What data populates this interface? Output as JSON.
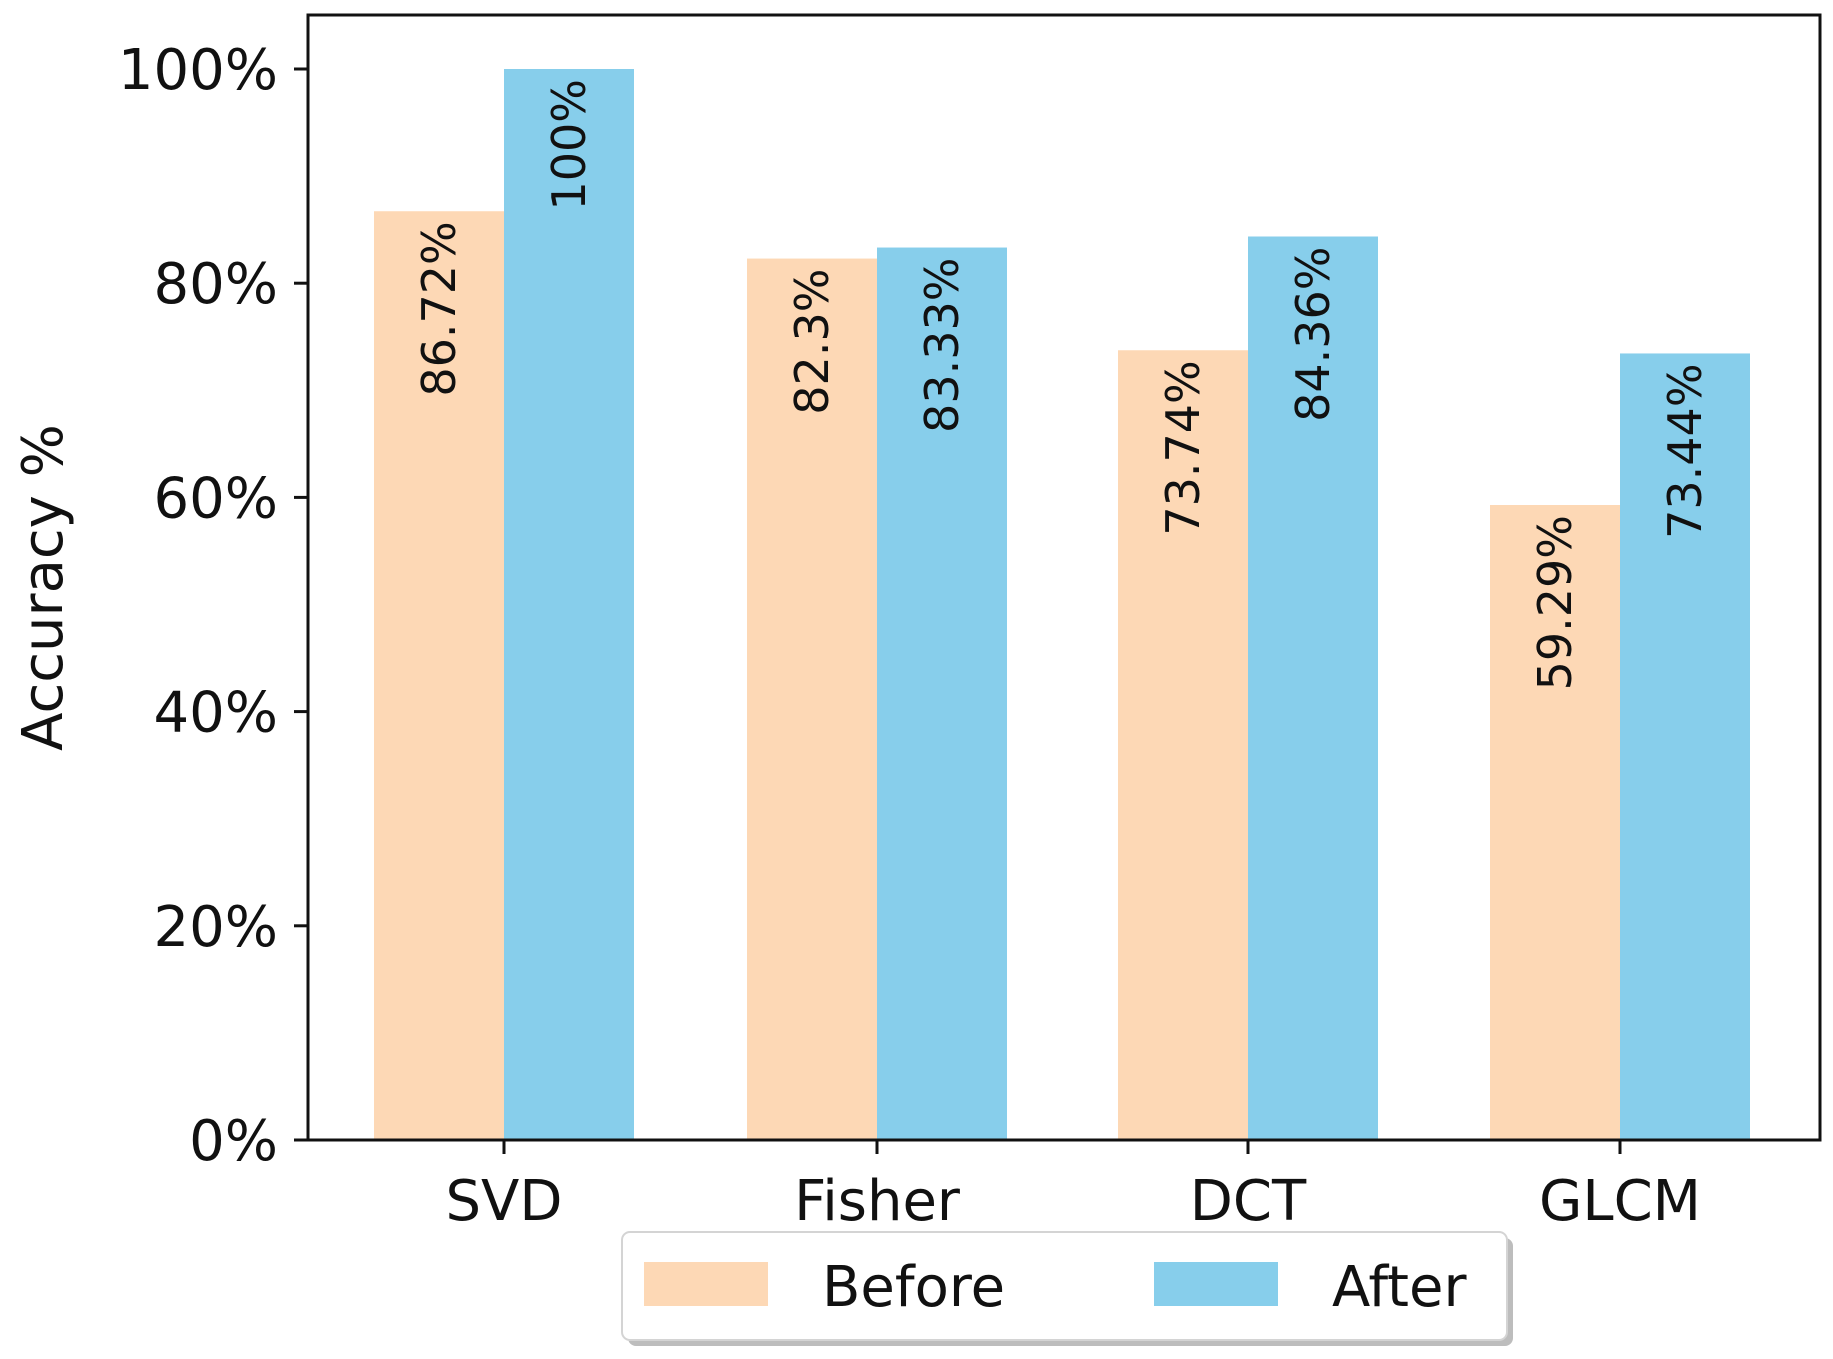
{
  "chart_data": {
    "type": "bar",
    "title": "",
    "xlabel": "",
    "ylabel": "Accuracy %",
    "ylim": [
      0,
      100
    ],
    "yticks": [
      "0%",
      "20%",
      "40%",
      "60%",
      "80%",
      "100%"
    ],
    "categories": [
      "SVD",
      "Fisher",
      "DCT",
      "GLCM"
    ],
    "series": [
      {
        "name": "Before",
        "color": "#fdd8b5",
        "values": [
          86.72,
          82.3,
          73.74,
          59.29
        ],
        "labels": [
          "86.72%",
          "82.3%",
          "73.74%",
          "59.29%"
        ]
      },
      {
        "name": "After",
        "color": "#87ceeb",
        "values": [
          100,
          83.33,
          84.36,
          73.44
        ],
        "labels": [
          "100%",
          "83.33%",
          "84.36%",
          "73.44%"
        ]
      }
    ],
    "legend": {
      "position": "bottom-center"
    },
    "grid": false
  }
}
